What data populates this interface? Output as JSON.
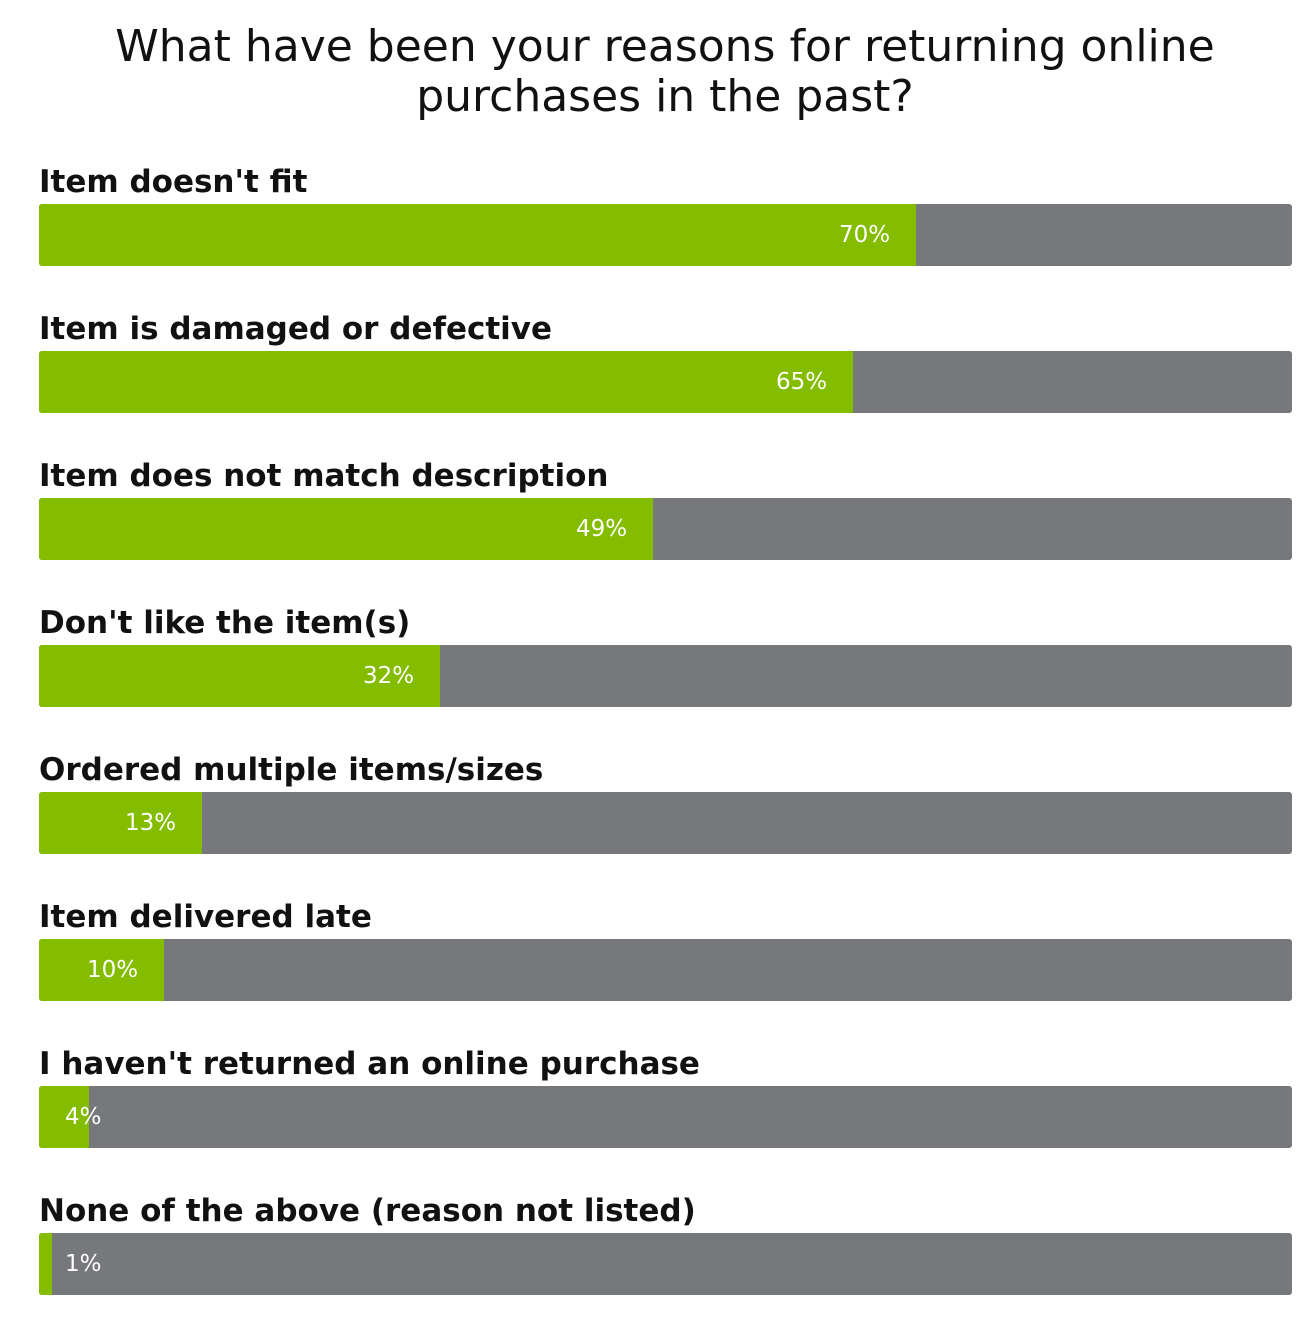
{
  "chart_data": {
    "type": "bar",
    "orientation": "horizontal",
    "title": "What have been your reasons for returning online purchases in the past?",
    "categories": [
      "Item doesn't fit",
      "Item is damaged or defective",
      "Item does not match description",
      "Don't like the item(s)",
      "Ordered multiple items/sizes",
      "Item delivered late",
      "I haven't returned an online purchase",
      "None of the above (reason not listed)"
    ],
    "values": [
      70,
      65,
      49,
      32,
      13,
      10,
      4,
      1
    ],
    "value_labels": [
      "70%",
      "65%",
      "49%",
      "32%",
      "13%",
      "10%",
      "4%",
      "1%"
    ],
    "unit": "%",
    "xlim": [
      0,
      100
    ],
    "grid": false,
    "legend": "none",
    "colors": {
      "fill": "#84bc00",
      "track": "#76787b",
      "label_text": "#ffffff"
    }
  }
}
